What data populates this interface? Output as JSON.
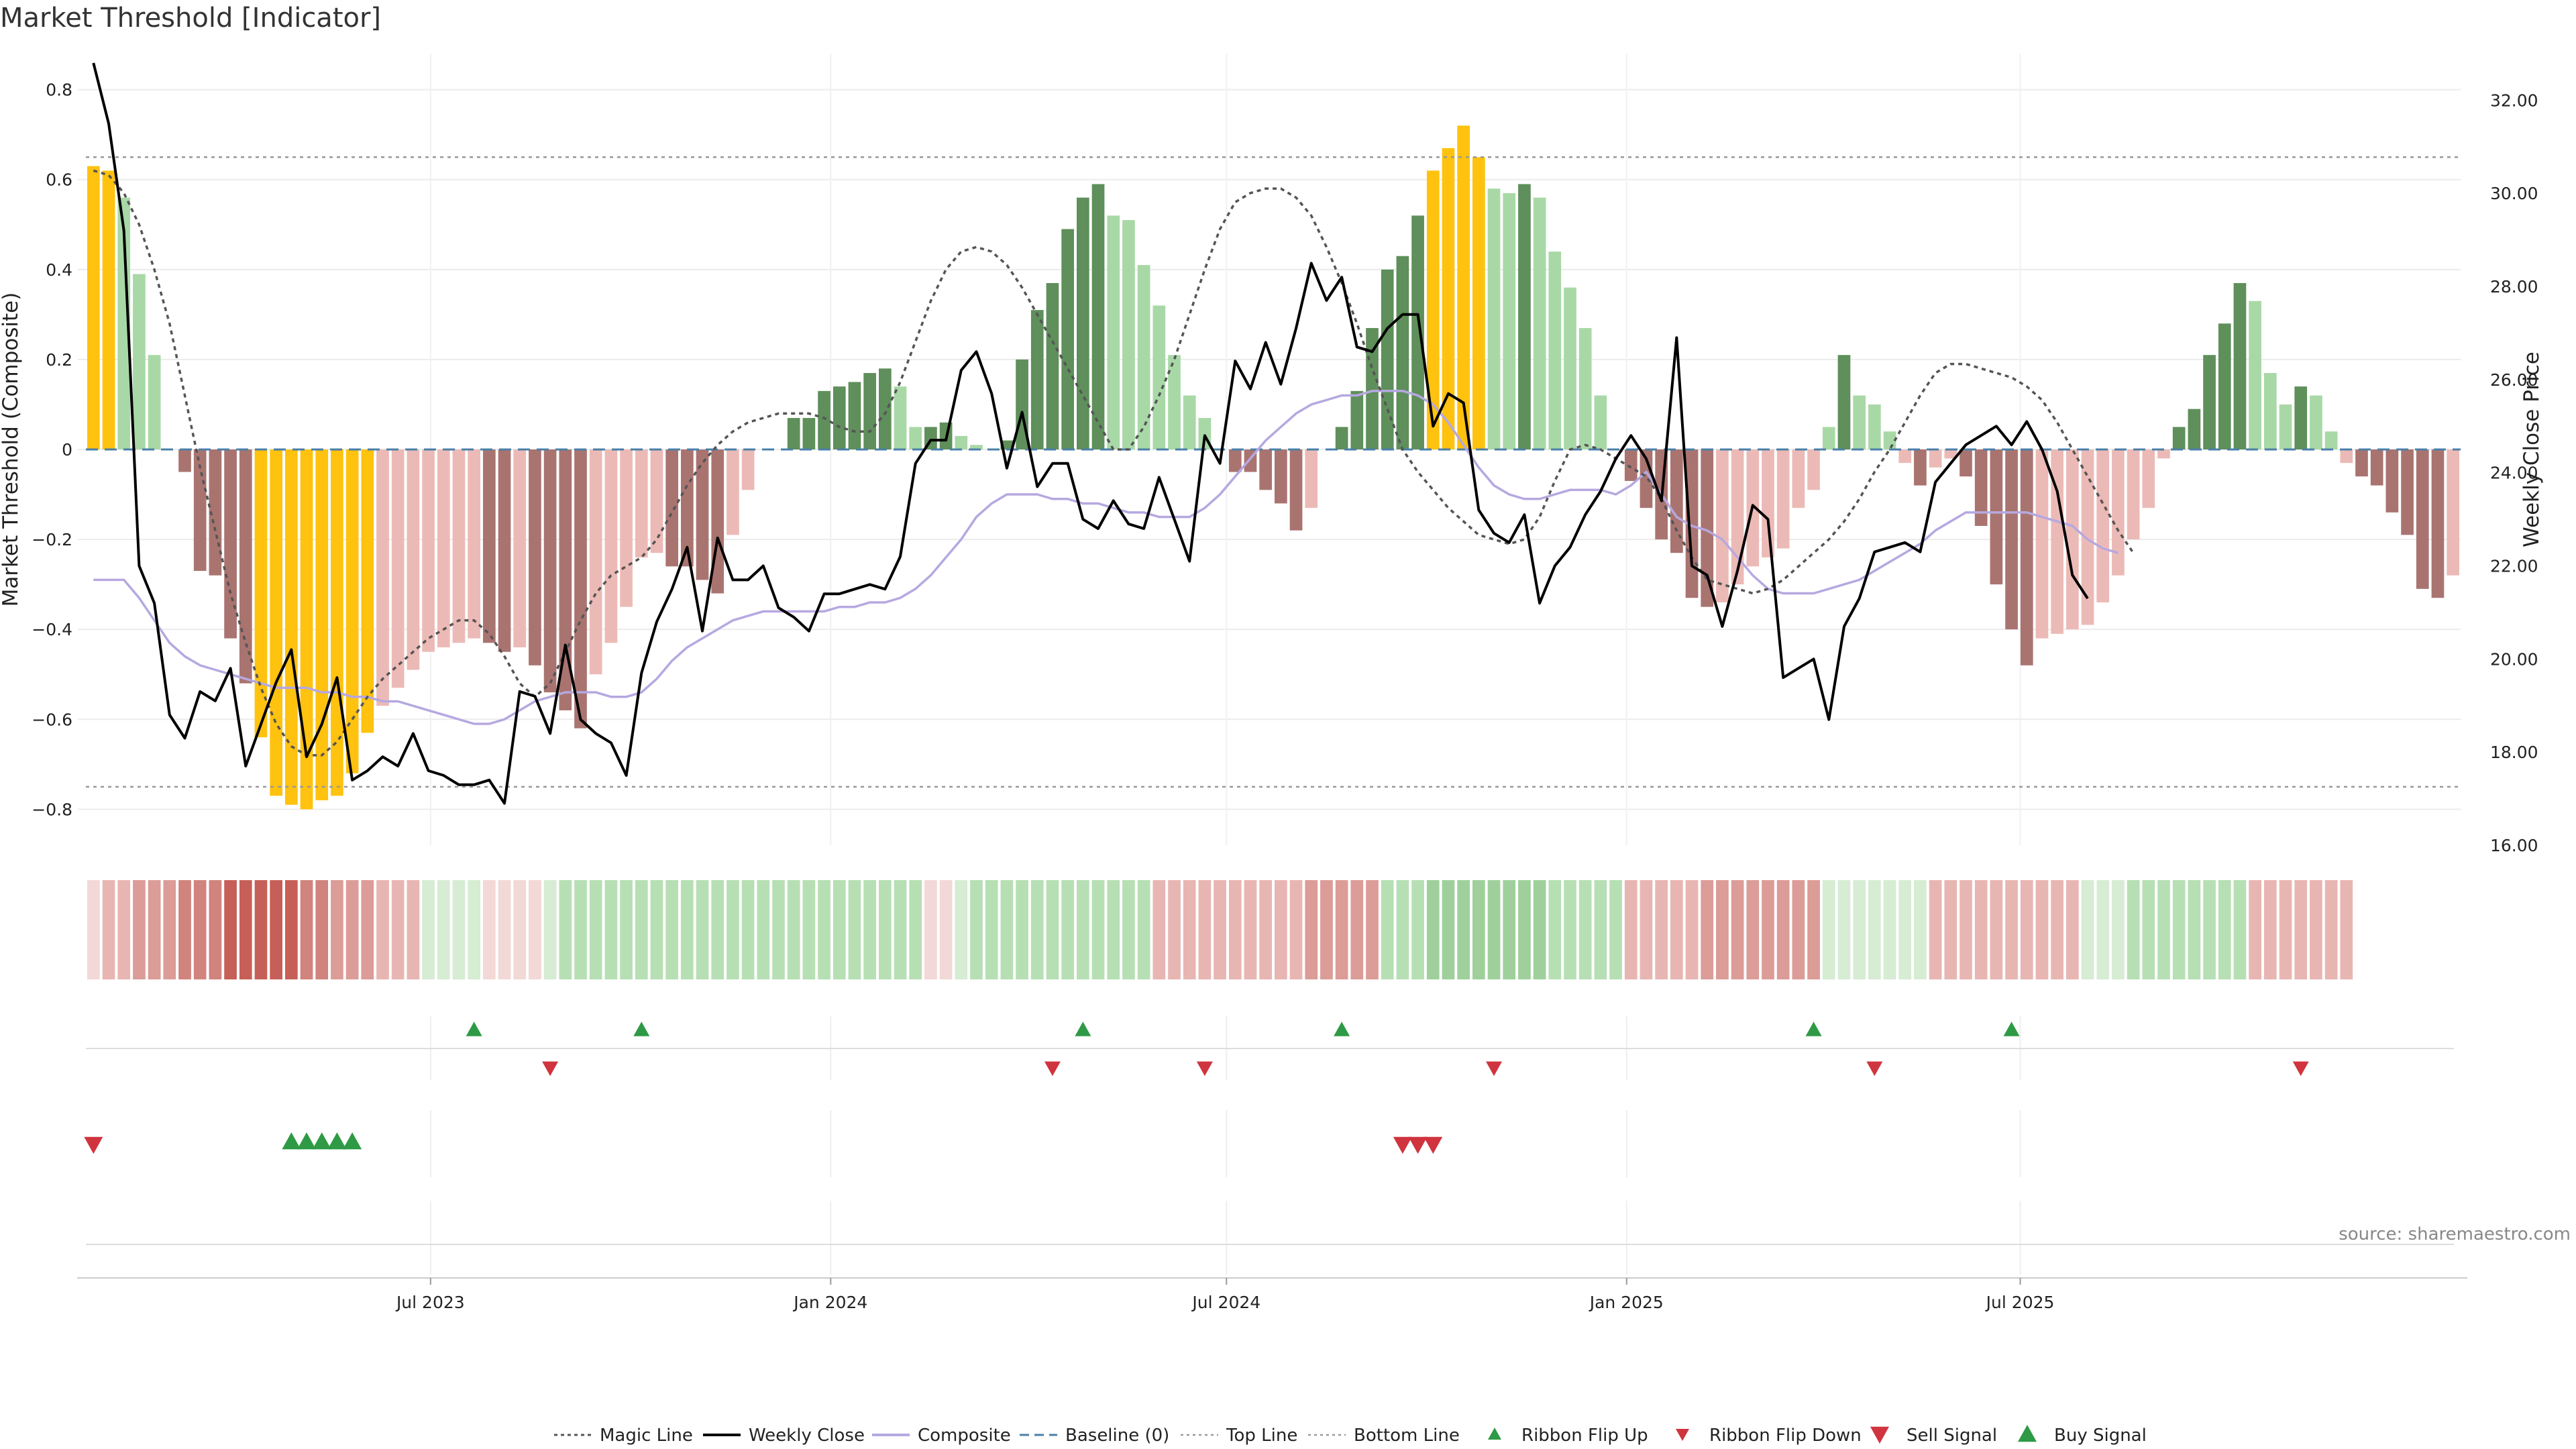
{
  "title": "Market Threshold [Indicator]",
  "source": "source: sharemaestro.com",
  "colors": {
    "strong_pos": "#5f8f5b",
    "weak_pos": "#a9d8a7",
    "strong_neg": "#a97470",
    "weak_neg": "#ecbab6",
    "extreme": "#ffc20e",
    "magic": "#555555",
    "close": "#000000",
    "composite": "#b6a8e0",
    "baseline": "#4a7fa8",
    "threshold_line": "#999999",
    "buy": "#2e9a45",
    "sell": "#d0343f"
  },
  "chart_data": {
    "type": "bar",
    "title": "Market Threshold [Indicator]",
    "ylabel": "Market Threshold (Composite)",
    "y2label": "Weekly Close Price",
    "ylim": [
      -0.88,
      0.88
    ],
    "y2lim": [
      16.0,
      33.0
    ],
    "yticks": [
      "0.8",
      "0.6",
      "0.4",
      "0.2",
      "0",
      "−0.2",
      "−0.4",
      "−0.6",
      "−0.8"
    ],
    "yticks_values": [
      0.8,
      0.6,
      0.4,
      0.2,
      0,
      -0.2,
      -0.4,
      -0.6,
      -0.8
    ],
    "y2ticks": [
      "32.00",
      "30.00",
      "28.00",
      "26.00",
      "24.00",
      "22.00",
      "20.00",
      "18.00",
      "16.00"
    ],
    "y2ticks_values": [
      32,
      30,
      28,
      26,
      24,
      22,
      20,
      18,
      16
    ],
    "x_start": "2023-01-27",
    "x_step_days": 7,
    "xticks": [
      {
        "label": "Jul 2023",
        "date": "2023-07-01"
      },
      {
        "label": "Jan 2024",
        "date": "2024-01-01"
      },
      {
        "label": "Jul 2024",
        "date": "2024-07-01"
      },
      {
        "label": "Jan 2025",
        "date": "2025-01-01"
      },
      {
        "label": "Jul 2025",
        "date": "2025-07-01"
      }
    ],
    "top_line": 0.65,
    "bottom_line": -0.75,
    "baseline": 0,
    "composite_bars": [
      0.63,
      0.62,
      0.56,
      0.39,
      0.21,
      0,
      -0.05,
      -0.27,
      -0.28,
      -0.42,
      -0.52,
      -0.64,
      -0.77,
      -0.79,
      -0.8,
      -0.78,
      -0.77,
      -0.72,
      -0.63,
      -0.57,
      -0.53,
      -0.49,
      -0.45,
      -0.44,
      -0.43,
      -0.42,
      -0.43,
      -0.45,
      -0.44,
      -0.48,
      -0.54,
      -0.58,
      -0.62,
      -0.5,
      -0.43,
      -0.35,
      -0.24,
      -0.23,
      -0.26,
      -0.26,
      -0.29,
      -0.32,
      -0.19,
      -0.09,
      0,
      0,
      0.07,
      0.07,
      0.13,
      0.14,
      0.15,
      0.17,
      0.18,
      0.14,
      0.05,
      0.05,
      0.06,
      0.03,
      0.01,
      0,
      0.02,
      0.2,
      0.31,
      0.37,
      0.49,
      0.56,
      0.59,
      0.52,
      0.51,
      0.41,
      0.32,
      0.21,
      0.12,
      0.07,
      0,
      -0.05,
      -0.05,
      -0.09,
      -0.12,
      -0.18,
      -0.13,
      0,
      0.05,
      0.13,
      0.27,
      0.4,
      0.43,
      0.52,
      0.62,
      0.67,
      0.72,
      0.65,
      0.58,
      0.57,
      0.59,
      0.56,
      0.44,
      0.36,
      0.27,
      0.12,
      0,
      -0.07,
      -0.13,
      -0.2,
      -0.23,
      -0.33,
      -0.35,
      -0.34,
      -0.3,
      -0.26,
      -0.24,
      -0.22,
      -0.13,
      -0.09,
      0.05,
      0.21,
      0.12,
      0.1,
      0.04,
      -0.03,
      -0.08,
      -0.04,
      -0.02,
      -0.06,
      -0.17,
      -0.3,
      -0.4,
      -0.48,
      -0.42,
      -0.41,
      -0.4,
      -0.39,
      -0.34,
      -0.28,
      -0.2,
      -0.13,
      -0.02,
      0.05,
      0.09,
      0.21,
      0.28,
      0.37,
      0.33,
      0.17,
      0.1,
      0.14,
      0.12,
      0.04,
      -0.03,
      -0.06,
      -0.08,
      -0.14,
      -0.19,
      -0.31,
      -0.33,
      -0.28
    ],
    "weekly_close": [
      32.8,
      31.5,
      29.2,
      22.0,
      21.2,
      18.8,
      18.3,
      19.3,
      19.1,
      19.8,
      17.7,
      18.6,
      19.5,
      20.2,
      17.9,
      18.6,
      19.6,
      17.4,
      17.6,
      17.9,
      17.7,
      18.4,
      17.6,
      17.5,
      17.3,
      17.3,
      17.4,
      16.9,
      19.3,
      19.2,
      18.4,
      20.3,
      18.7,
      18.4,
      18.2,
      17.5,
      19.7,
      20.8,
      21.5,
      22.4,
      20.6,
      22.6,
      21.7,
      21.7,
      22.0,
      21.1,
      20.9,
      20.6,
      21.4,
      21.4,
      21.5,
      21.6,
      21.5,
      22.2,
      24.2,
      24.7,
      24.7,
      26.2,
      26.6,
      25.7,
      24.1,
      25.3,
      23.7,
      24.2,
      24.2,
      23.0,
      22.8,
      23.4,
      22.9,
      22.8,
      23.9,
      23.0,
      22.1,
      24.8,
      24.2,
      26.4,
      25.8,
      26.8,
      25.9,
      27.1,
      28.5,
      27.7,
      28.2,
      26.7,
      26.6,
      27.1,
      27.4,
      27.4,
      25.0,
      25.7,
      25.5,
      23.2,
      22.7,
      22.5,
      23.1,
      21.2,
      22.0,
      22.4,
      23.1,
      23.6,
      24.3,
      24.8,
      24.3,
      23.4,
      26.9,
      22.0,
      21.8,
      20.7,
      21.9,
      23.3,
      23.0,
      19.6,
      19.8,
      20.0,
      18.7,
      20.7,
      21.3,
      22.3,
      22.4,
      22.5,
      22.3,
      23.8,
      24.2,
      24.6,
      24.8,
      25.0,
      24.6,
      25.1,
      24.5,
      23.6,
      21.8,
      21.3
    ],
    "magic_line": [
      0.62,
      0.61,
      0.57,
      0.5,
      0.4,
      0.28,
      0.12,
      -0.04,
      -0.18,
      -0.32,
      -0.43,
      -0.53,
      -0.61,
      -0.66,
      -0.68,
      -0.68,
      -0.65,
      -0.6,
      -0.55,
      -0.51,
      -0.48,
      -0.45,
      -0.42,
      -0.4,
      -0.38,
      -0.38,
      -0.41,
      -0.46,
      -0.52,
      -0.55,
      -0.52,
      -0.45,
      -0.38,
      -0.32,
      -0.28,
      -0.26,
      -0.24,
      -0.2,
      -0.14,
      -0.08,
      -0.03,
      0.01,
      0.04,
      0.06,
      0.07,
      0.08,
      0.08,
      0.08,
      0.07,
      0.05,
      0.04,
      0.04,
      0.08,
      0.15,
      0.24,
      0.33,
      0.4,
      0.44,
      0.45,
      0.44,
      0.41,
      0.36,
      0.3,
      0.24,
      0.18,
      0.12,
      0.06,
      0.0,
      0.0,
      0.05,
      0.12,
      0.2,
      0.3,
      0.4,
      0.49,
      0.55,
      0.57,
      0.58,
      0.58,
      0.56,
      0.52,
      0.45,
      0.37,
      0.28,
      0.18,
      0.09,
      0.0,
      -0.05,
      -0.09,
      -0.13,
      -0.16,
      -0.19,
      -0.2,
      -0.21,
      -0.2,
      -0.15,
      -0.07,
      0.0,
      0.01,
      0.0,
      -0.02,
      -0.04,
      -0.06,
      -0.11,
      -0.18,
      -0.24,
      -0.29,
      -0.3,
      -0.31,
      -0.32,
      -0.31,
      -0.29,
      -0.26,
      -0.23,
      -0.2,
      -0.16,
      -0.11,
      -0.05,
      0.0,
      0.06,
      0.12,
      0.17,
      0.19,
      0.19,
      0.18,
      0.17,
      0.16,
      0.14,
      0.11,
      0.06,
      0.0,
      -0.06,
      -0.12,
      -0.18,
      -0.23
    ],
    "composite_line": [
      -0.29,
      -0.29,
      -0.29,
      -0.33,
      -0.38,
      -0.43,
      -0.46,
      -0.48,
      -0.49,
      -0.5,
      -0.51,
      -0.52,
      -0.53,
      -0.53,
      -0.53,
      -0.54,
      -0.54,
      -0.55,
      -0.55,
      -0.56,
      -0.56,
      -0.57,
      -0.58,
      -0.59,
      -0.6,
      -0.61,
      -0.61,
      -0.6,
      -0.58,
      -0.56,
      -0.55,
      -0.54,
      -0.54,
      -0.54,
      -0.55,
      -0.55,
      -0.54,
      -0.51,
      -0.47,
      -0.44,
      -0.42,
      -0.4,
      -0.38,
      -0.37,
      -0.36,
      -0.36,
      -0.36,
      -0.36,
      -0.36,
      -0.35,
      -0.35,
      -0.34,
      -0.34,
      -0.33,
      -0.31,
      -0.28,
      -0.24,
      -0.2,
      -0.15,
      -0.12,
      -0.1,
      -0.1,
      -0.1,
      -0.11,
      -0.11,
      -0.12,
      -0.12,
      -0.13,
      -0.14,
      -0.14,
      -0.15,
      -0.15,
      -0.15,
      -0.13,
      -0.1,
      -0.06,
      -0.02,
      0.02,
      0.05,
      0.08,
      0.1,
      0.11,
      0.12,
      0.12,
      0.13,
      0.13,
      0.13,
      0.12,
      0.1,
      0.06,
      0.01,
      -0.04,
      -0.08,
      -0.1,
      -0.11,
      -0.11,
      -0.1,
      -0.09,
      -0.09,
      -0.09,
      -0.1,
      -0.08,
      -0.05,
      -0.1,
      -0.15,
      -0.17,
      -0.18,
      -0.2,
      -0.24,
      -0.28,
      -0.31,
      -0.32,
      -0.32,
      -0.32,
      -0.31,
      -0.3,
      -0.29,
      -0.27,
      -0.25,
      -0.23,
      -0.21,
      -0.18,
      -0.16,
      -0.14,
      -0.14,
      -0.14,
      -0.14,
      -0.14,
      -0.15,
      -0.16,
      -0.17,
      -0.2,
      -0.22,
      -0.23
    ],
    "ribbon": [
      -1,
      -2,
      -2,
      -3,
      -3,
      -3,
      -4,
      -4,
      -4,
      -5,
      -5,
      -5,
      -5,
      -5,
      -4,
      -4,
      -3,
      -3,
      -3,
      -2,
      -2,
      -2,
      1,
      1,
      1,
      1,
      -1,
      -1,
      -1,
      -1,
      1,
      2,
      2,
      2,
      2,
      2,
      2,
      2,
      2,
      2,
      2,
      2,
      2,
      2,
      2,
      2,
      2,
      2,
      2,
      2,
      2,
      2,
      2,
      2,
      2,
      -1,
      -1,
      1,
      2,
      2,
      2,
      2,
      2,
      2,
      2,
      2,
      2,
      2,
      2,
      2,
      -2,
      -2,
      -2,
      -2,
      -2,
      -2,
      -2,
      -2,
      -2,
      -2,
      -3,
      -3,
      -3,
      -3,
      -3,
      2,
      2,
      2,
      3,
      3,
      3,
      3,
      3,
      3,
      3,
      3,
      2,
      2,
      2,
      2,
      2,
      -2,
      -2,
      -2,
      -2,
      -2,
      -3,
      -3,
      -3,
      -3,
      -3,
      -3,
      -3,
      -3,
      1,
      1,
      1,
      1,
      1,
      1,
      1,
      -2,
      -2,
      -2,
      -2,
      -2,
      -2,
      -2,
      -2,
      -2,
      -2,
      1,
      1,
      1,
      2,
      2,
      2,
      2,
      2,
      2,
      2,
      2,
      -2,
      -2,
      -2,
      -2,
      -2,
      -2,
      -2
    ],
    "ribbon_flip_up_dates": [
      "2023-07-21",
      "2023-10-06",
      "2024-04-26",
      "2024-08-23",
      "2025-03-28",
      "2025-06-27"
    ],
    "ribbon_flip_down_dates": [
      "2023-08-25",
      "2024-04-12",
      "2024-06-21",
      "2024-11-01",
      "2025-04-25",
      "2025-11-07"
    ],
    "sell_signal_dates": [
      "2023-01-27",
      "2024-09-20",
      "2024-09-27",
      "2024-10-04"
    ],
    "buy_signal_dates": [
      "2023-04-28",
      "2023-05-05",
      "2023-05-12",
      "2023-05-19",
      "2023-05-26"
    ],
    "legend": [
      "Magic Line",
      "Weekly Close",
      "Composite",
      "Baseline (0)",
      "Top Line",
      "Bottom Line",
      "Ribbon Flip Up",
      "Ribbon Flip Down",
      "Sell Signal",
      "Buy Signal"
    ]
  }
}
